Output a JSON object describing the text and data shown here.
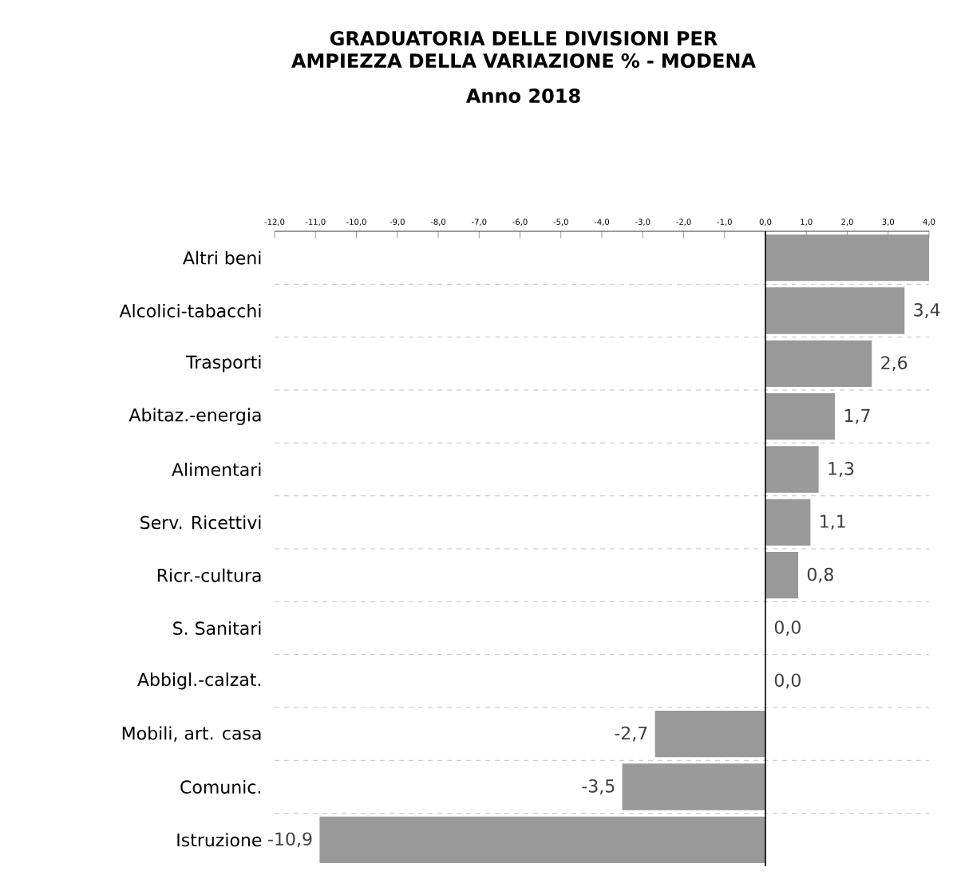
{
  "chart_data": {
    "type": "bar",
    "orientation": "horizontal",
    "title": "GRADUATORIA DELLE DIVISIONI  PER AMPIEZZA DELLA VARIAZIONE % - MODENA",
    "subtitle": "Anno 2018",
    "categories": [
      "Altri beni",
      "Alcolici-tabacchi",
      "Trasporti",
      "Abitaz.-energia",
      "Alimentari",
      "Serv. Ricettivi",
      "Ricr.-cultura",
      "S. Sanitari",
      "Abbigl.-calzat.",
      "Mobili, art. casa",
      "Comunic.",
      "Istruzione"
    ],
    "values": [
      4.0,
      3.4,
      2.6,
      1.7,
      1.3,
      1.1,
      0.8,
      0.0,
      0.0,
      -2.7,
      -3.5,
      -10.9
    ],
    "value_labels": [
      null,
      "3,4",
      "2,6",
      "1,7",
      "1,3",
      "1,1",
      "0,8",
      "0,0",
      "0,0",
      "-2,7",
      "-3,5",
      "-10,9"
    ],
    "color": "#999999",
    "xlim": [
      -12,
      4
    ],
    "xticks": [
      {
        "value": -12,
        "label": "-12,0"
      },
      {
        "value": -11,
        "label": "-11,0"
      },
      {
        "value": -10,
        "label": "-10,0"
      },
      {
        "value": -9,
        "label": "-9,0"
      },
      {
        "value": -8,
        "label": "-8,0"
      },
      {
        "value": -7,
        "label": "-7,0"
      },
      {
        "value": -6,
        "label": "-6,0"
      },
      {
        "value": -5,
        "label": "-5,0"
      },
      {
        "value": -4,
        "label": "-4,0"
      },
      {
        "value": -3,
        "label": "-3,0"
      },
      {
        "value": -2,
        "label": "-2,0"
      },
      {
        "value": -1,
        "label": "-1,0"
      },
      {
        "value": 0,
        "label": "0,0"
      },
      {
        "value": 1,
        "label": "1,0"
      },
      {
        "value": 2,
        "label": "2,0"
      },
      {
        "value": 3,
        "label": "3,0"
      },
      {
        "value": 4,
        "label": "4,0"
      }
    ],
    "grid": "y"
  }
}
